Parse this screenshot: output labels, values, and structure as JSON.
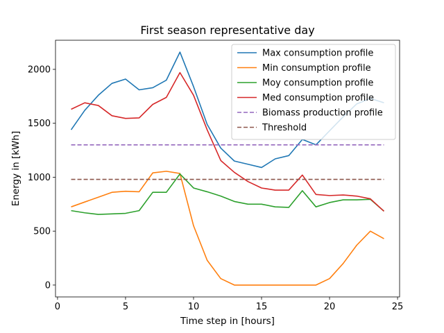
{
  "chart_data": {
    "type": "line",
    "title": "First season representative day",
    "xlabel": "Time step in [hours]",
    "ylabel": "Energy in [kWh]",
    "xlim": [
      -0.15,
      25.15
    ],
    "ylim": [
      -110,
      2270
    ],
    "xticks": [
      0,
      5,
      10,
      15,
      20,
      25
    ],
    "yticks": [
      0,
      500,
      1000,
      1500,
      2000
    ],
    "grid": false,
    "legend_position": "top-right",
    "x": [
      1,
      2,
      3,
      4,
      5,
      6,
      7,
      8,
      9,
      10,
      11,
      12,
      13,
      14,
      15,
      16,
      17,
      18,
      19,
      20,
      21,
      22,
      23,
      24
    ],
    "series": [
      {
        "name": "Max consumption profile",
        "color": "#1f77b4",
        "style": "solid",
        "values": [
          1440,
          1620,
          1760,
          1870,
          1910,
          1810,
          1830,
          1900,
          2160,
          1840,
          1490,
          1270,
          1150,
          1120,
          1090,
          1170,
          1200,
          1350,
          1300,
          1430,
          1560,
          1680,
          1730,
          1690
        ]
      },
      {
        "name": "Min consumption profile",
        "color": "#ff7f0e",
        "style": "solid",
        "values": [
          725,
          770,
          815,
          860,
          870,
          865,
          1040,
          1055,
          1035,
          550,
          230,
          60,
          0,
          0,
          0,
          0,
          0,
          0,
          0,
          60,
          200,
          370,
          500,
          430
        ]
      },
      {
        "name": "Moy consumption profile",
        "color": "#2ca02c",
        "style": "solid",
        "values": [
          690,
          670,
          655,
          660,
          665,
          690,
          860,
          860,
          1030,
          900,
          865,
          825,
          775,
          750,
          750,
          725,
          720,
          875,
          725,
          765,
          790,
          790,
          795,
          685
        ]
      },
      {
        "name": "Med consumption profile",
        "color": "#d62728",
        "style": "solid",
        "values": [
          1630,
          1690,
          1665,
          1570,
          1545,
          1550,
          1675,
          1740,
          1970,
          1760,
          1440,
          1155,
          1045,
          960,
          900,
          880,
          880,
          1020,
          840,
          830,
          835,
          825,
          800,
          685
        ]
      },
      {
        "name": "Biomass production profile",
        "color": "#9467bd",
        "style": "dashed",
        "values": [
          1300,
          1300,
          1300,
          1300,
          1300,
          1300,
          1300,
          1300,
          1300,
          1300,
          1300,
          1300,
          1300,
          1300,
          1300,
          1300,
          1300,
          1300,
          1300,
          1300,
          1300,
          1300,
          1300,
          1300
        ]
      },
      {
        "name": "Threshold",
        "color": "#8c564b",
        "style": "dashed",
        "values": [
          980,
          980,
          980,
          980,
          980,
          980,
          980,
          980,
          980,
          980,
          980,
          980,
          980,
          980,
          980,
          980,
          980,
          980,
          980,
          980,
          980,
          980,
          980,
          980
        ]
      }
    ]
  }
}
